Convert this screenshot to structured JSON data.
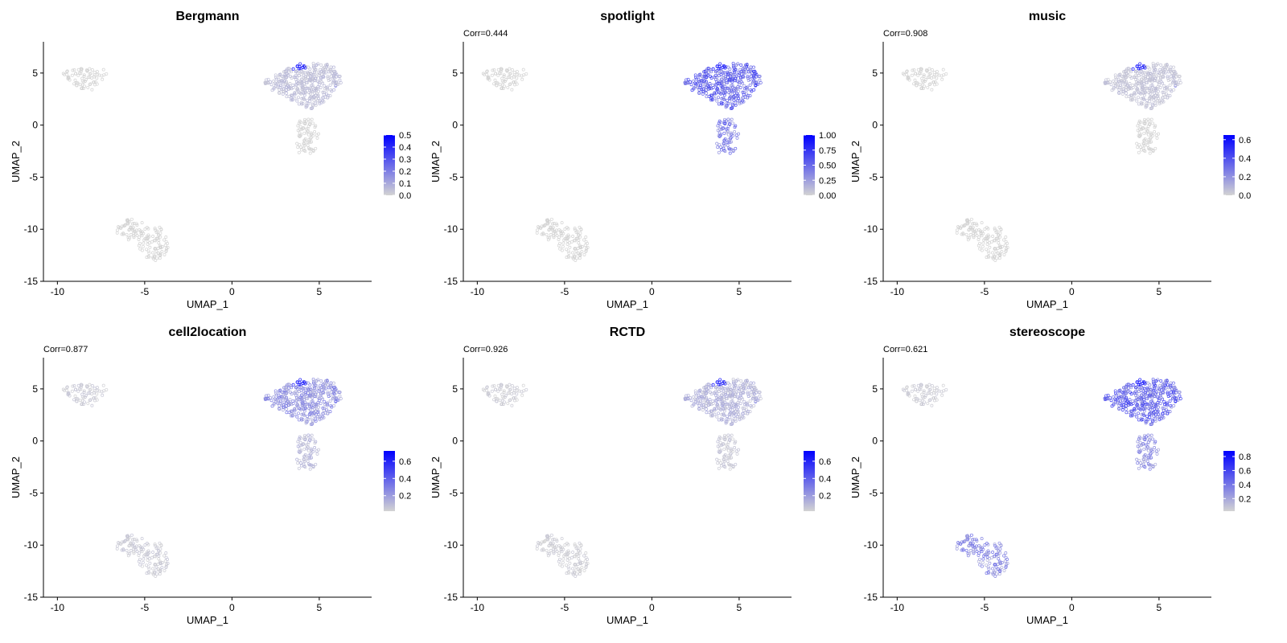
{
  "figure": {
    "x_axis_label": "UMAP_1",
    "y_axis_label": "UMAP_2",
    "x_ticks": [
      -10,
      -5,
      0,
      5
    ],
    "y_ticks": [
      -15,
      -10,
      -5,
      0,
      5
    ]
  },
  "colors": {
    "low": "#d3d3d3",
    "high": "#0000ff",
    "axis": "#000000",
    "background": "#ffffff"
  },
  "chart_data": [
    {
      "type": "scatter",
      "title": "Bergmann",
      "corr_label": "",
      "xlabel": "UMAP_1",
      "ylabel": "UMAP_2",
      "xlim": [
        -10.8,
        8
      ],
      "ylim": [
        -15,
        8
      ],
      "grid": false,
      "legend_position": "right",
      "color_scale": {
        "min": 0,
        "max": 0.5,
        "ticks": [
          0.0,
          0.1,
          0.2,
          0.3,
          0.4,
          0.5
        ],
        "tick_labels": [
          "0.0",
          "0.1",
          "0.2",
          "0.3",
          "0.4",
          "0.5"
        ]
      },
      "cluster_intensity": {
        "left": 0.0,
        "bottom": 0.0,
        "right_top": 0.05,
        "right_bottom": 0.0
      }
    },
    {
      "type": "scatter",
      "title": "spotlight",
      "corr_label": "Corr=0.444",
      "xlabel": "UMAP_1",
      "ylabel": "UMAP_2",
      "xlim": [
        -10.8,
        8
      ],
      "ylim": [
        -15,
        8
      ],
      "grid": false,
      "legend_position": "right",
      "color_scale": {
        "min": 0,
        "max": 1.0,
        "ticks": [
          0.0,
          0.25,
          0.5,
          0.75,
          1.0
        ],
        "tick_labels": [
          "0.00",
          "0.25",
          "0.50",
          "0.75",
          "1.00"
        ]
      },
      "cluster_intensity": {
        "left": 0.0,
        "bottom": 0.0,
        "right_top": 0.5,
        "right_bottom": 0.4
      }
    },
    {
      "type": "scatter",
      "title": "music",
      "corr_label": "Corr=0.908",
      "xlabel": "UMAP_1",
      "ylabel": "UMAP_2",
      "xlim": [
        -10.8,
        8
      ],
      "ylim": [
        -15,
        8
      ],
      "grid": false,
      "legend_position": "right",
      "color_scale": {
        "min": 0,
        "max": 0.65,
        "ticks": [
          0.0,
          0.2,
          0.4,
          0.6
        ],
        "tick_labels": [
          "0.0",
          "0.2",
          "0.4",
          "0.6"
        ]
      },
      "cluster_intensity": {
        "left": 0.0,
        "bottom": 0.0,
        "right_top": 0.05,
        "right_bottom": 0.0
      }
    },
    {
      "type": "scatter",
      "title": "cell2location",
      "corr_label": "Corr=0.877",
      "xlabel": "UMAP_1",
      "ylabel": "UMAP_2",
      "xlim": [
        -10.8,
        8
      ],
      "ylim": [
        -15,
        8
      ],
      "grid": false,
      "legend_position": "right",
      "color_scale": {
        "min": 0.02,
        "max": 0.72,
        "ticks": [
          0.2,
          0.4,
          0.6
        ],
        "tick_labels": [
          "0.2",
          "0.4",
          "0.6"
        ]
      },
      "cluster_intensity": {
        "left": 0.05,
        "bottom": 0.05,
        "right_top": 0.22,
        "right_bottom": 0.1
      }
    },
    {
      "type": "scatter",
      "title": "RCTD",
      "corr_label": "Corr=0.926",
      "xlabel": "UMAP_1",
      "ylabel": "UMAP_2",
      "xlim": [
        -10.8,
        8
      ],
      "ylim": [
        -15,
        8
      ],
      "grid": false,
      "legend_position": "right",
      "color_scale": {
        "min": 0.02,
        "max": 0.72,
        "ticks": [
          0.2,
          0.4,
          0.6
        ],
        "tick_labels": [
          "0.2",
          "0.4",
          "0.6"
        ]
      },
      "cluster_intensity": {
        "left": 0.04,
        "bottom": 0.04,
        "right_top": 0.12,
        "right_bottom": 0.06
      }
    },
    {
      "type": "scatter",
      "title": "stereoscope",
      "corr_label": "Corr=0.621",
      "xlabel": "UMAP_1",
      "ylabel": "UMAP_2",
      "xlim": [
        -10.8,
        8
      ],
      "ylim": [
        -15,
        8
      ],
      "grid": false,
      "legend_position": "right",
      "color_scale": {
        "min": 0.02,
        "max": 0.88,
        "ticks": [
          0.2,
          0.4,
          0.6,
          0.8
        ],
        "tick_labels": [
          "0.2",
          "0.4",
          "0.6",
          "0.8"
        ]
      },
      "cluster_intensity": {
        "left": 0.05,
        "bottom": 0.3,
        "right_top": 0.45,
        "right_bottom": 0.3
      }
    }
  ]
}
